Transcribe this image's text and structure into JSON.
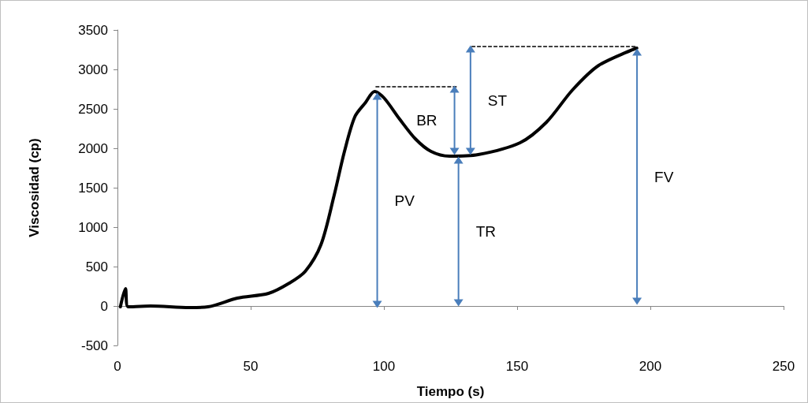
{
  "chart_data": {
    "type": "line",
    "xlabel": "Tiempo (s)",
    "ylabel": "Viscosidad (cp)",
    "xlim": [
      0,
      250
    ],
    "xticks": [
      0,
      50,
      100,
      150,
      200,
      250
    ],
    "ylim": [
      -500,
      3500
    ],
    "yticks": [
      -500,
      0,
      500,
      1000,
      1500,
      2000,
      2500,
      3000,
      3500
    ],
    "marker": "none",
    "line_style": "solid",
    "series": [
      {
        "color": "#000000",
        "x": [
          1.1,
          3,
          4,
          12.4,
          27,
          34,
          45,
          56.7,
          64.5,
          70.5,
          76.4,
          81.3,
          85.2,
          89.1,
          93.1,
          96.5,
          100,
          105.9,
          111.8,
          117.7,
          124.6,
          135.4,
          151.1,
          161,
          170.8,
          180.6,
          194.9
        ],
        "values": [
          -10,
          220,
          -10,
          0,
          -20,
          -10,
          100,
          160,
          290,
          440,
          780,
          1400,
          1960,
          2400,
          2580,
          2720,
          2640,
          2370,
          2120,
          1960,
          1900,
          1920,
          2070,
          2330,
          2740,
          3050,
          3270
        ]
      },
      {
        "type": "line",
        "color": "#000000",
        "line_style": "dashed",
        "x": [
          97,
          128
        ],
        "values": [
          2780,
          2780
        ]
      },
      {
        "type": "line",
        "color": "#000000",
        "line_style": "dashed",
        "x": [
          133,
          195
        ],
        "values": [
          3290,
          3290
        ]
      },
      {
        "type": "line",
        "name": "PV",
        "color": "#4a7ebb",
        "marker": "triangle",
        "x": [
          97.5,
          97.5
        ],
        "values": [
          20,
          2660
        ]
      },
      {
        "type": "line",
        "name": "TR",
        "color": "#4a7ebb",
        "marker": "triangle",
        "x": [
          128,
          128
        ],
        "values": [
          40,
          1850
        ]
      },
      {
        "type": "line",
        "name": "BR",
        "color": "#4a7ebb",
        "marker": "triangle",
        "x": [
          126.5,
          126.5
        ],
        "values": [
          1960,
          2750
        ]
      },
      {
        "type": "line",
        "name": "ST",
        "color": "#4a7ebb",
        "marker": "triangle",
        "x": [
          132.5,
          132.5
        ],
        "values": [
          1960,
          3260
        ]
      },
      {
        "type": "line",
        "name": "FV",
        "color": "#4a7ebb",
        "marker": "triangle",
        "x": [
          195,
          195
        ],
        "values": [
          60,
          3220
        ]
      }
    ]
  }
}
